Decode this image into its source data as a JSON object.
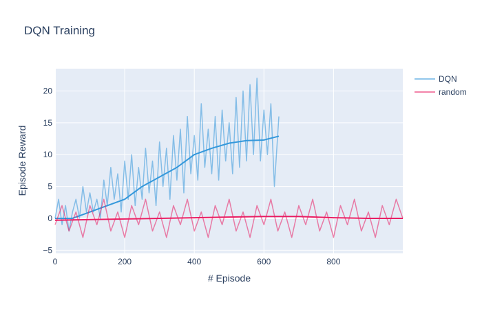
{
  "chart_data": {
    "type": "line",
    "title": "DQN Training",
    "xlabel": "# Episode",
    "ylabel": "Episode Reward",
    "xlim": [
      0,
      999
    ],
    "ylim": [
      -5.5,
      23.5
    ],
    "x_ticks": [
      0,
      200,
      400,
      600,
      800
    ],
    "y_ticks": [
      -5,
      0,
      5,
      10,
      15,
      20
    ],
    "grid": true,
    "legend_position": "top-right",
    "plot_bgcolor": "#e5ecf6",
    "series": [
      {
        "name": "DQN",
        "color": "#3498db",
        "episodes": [
          0,
          643
        ],
        "raw_points": [
          [
            0,
            0
          ],
          [
            10,
            3
          ],
          [
            20,
            -1
          ],
          [
            30,
            2
          ],
          [
            40,
            -2
          ],
          [
            50,
            1
          ],
          [
            60,
            3
          ],
          [
            70,
            0
          ],
          [
            80,
            5
          ],
          [
            90,
            1
          ],
          [
            100,
            4
          ],
          [
            110,
            1
          ],
          [
            120,
            3
          ],
          [
            130,
            0
          ],
          [
            140,
            6
          ],
          [
            150,
            2
          ],
          [
            160,
            8
          ],
          [
            170,
            3
          ],
          [
            180,
            7
          ],
          [
            190,
            1
          ],
          [
            200,
            9
          ],
          [
            210,
            3
          ],
          [
            220,
            10
          ],
          [
            230,
            2
          ],
          [
            240,
            8
          ],
          [
            250,
            3
          ],
          [
            260,
            11
          ],
          [
            270,
            4
          ],
          [
            280,
            9
          ],
          [
            290,
            2
          ],
          [
            300,
            12
          ],
          [
            310,
            5
          ],
          [
            320,
            11
          ],
          [
            330,
            3
          ],
          [
            340,
            13
          ],
          [
            350,
            6
          ],
          [
            360,
            14
          ],
          [
            370,
            4
          ],
          [
            380,
            16
          ],
          [
            390,
            7
          ],
          [
            400,
            13
          ],
          [
            410,
            6
          ],
          [
            420,
            18
          ],
          [
            430,
            8
          ],
          [
            440,
            14
          ],
          [
            450,
            7
          ],
          [
            460,
            16
          ],
          [
            470,
            6
          ],
          [
            480,
            17
          ],
          [
            490,
            9
          ],
          [
            500,
            15
          ],
          [
            510,
            7
          ],
          [
            520,
            19
          ],
          [
            530,
            8
          ],
          [
            540,
            20
          ],
          [
            550,
            9
          ],
          [
            560,
            21
          ],
          [
            570,
            10
          ],
          [
            580,
            22
          ],
          [
            590,
            9
          ],
          [
            600,
            17
          ],
          [
            610,
            10
          ],
          [
            620,
            18
          ],
          [
            630,
            5
          ],
          [
            643,
            16
          ]
        ],
        "moving_avg_points": [
          [
            0,
            0
          ],
          [
            50,
            0
          ],
          [
            100,
            1
          ],
          [
            150,
            2
          ],
          [
            200,
            3
          ],
          [
            250,
            5
          ],
          [
            300,
            6.5
          ],
          [
            350,
            8
          ],
          [
            400,
            10
          ],
          [
            450,
            11
          ],
          [
            500,
            11.8
          ],
          [
            550,
            12.2
          ],
          [
            600,
            12.3
          ],
          [
            643,
            12.9
          ]
        ]
      },
      {
        "name": "random",
        "color": "#e91e63",
        "episodes": [
          0,
          999
        ],
        "raw_points": [
          [
            0,
            -1
          ],
          [
            20,
            2
          ],
          [
            40,
            -2
          ],
          [
            60,
            1
          ],
          [
            80,
            -3
          ],
          [
            100,
            2
          ],
          [
            120,
            -1
          ],
          [
            140,
            3
          ],
          [
            160,
            -2
          ],
          [
            180,
            1
          ],
          [
            200,
            -3
          ],
          [
            220,
            2
          ],
          [
            240,
            -1
          ],
          [
            260,
            3
          ],
          [
            280,
            -2
          ],
          [
            300,
            1
          ],
          [
            320,
            -3
          ],
          [
            340,
            2
          ],
          [
            360,
            -1
          ],
          [
            380,
            3
          ],
          [
            400,
            -2
          ],
          [
            420,
            1
          ],
          [
            440,
            -3
          ],
          [
            460,
            2
          ],
          [
            480,
            -1
          ],
          [
            500,
            3
          ],
          [
            520,
            -2
          ],
          [
            540,
            1
          ],
          [
            560,
            -3
          ],
          [
            580,
            2
          ],
          [
            600,
            -1
          ],
          [
            620,
            3
          ],
          [
            640,
            -2
          ],
          [
            660,
            1
          ],
          [
            680,
            -3
          ],
          [
            700,
            2
          ],
          [
            720,
            -1
          ],
          [
            740,
            3
          ],
          [
            760,
            -2
          ],
          [
            780,
            1
          ],
          [
            800,
            -3
          ],
          [
            820,
            2
          ],
          [
            840,
            -1
          ],
          [
            860,
            3
          ],
          [
            880,
            -2
          ],
          [
            900,
            1
          ],
          [
            920,
            -3
          ],
          [
            940,
            2
          ],
          [
            960,
            -1
          ],
          [
            980,
            3
          ],
          [
            999,
            0
          ]
        ],
        "moving_avg_points": [
          [
            0,
            -0.3
          ],
          [
            100,
            -0.2
          ],
          [
            200,
            -0.1
          ],
          [
            300,
            0
          ],
          [
            400,
            0.1
          ],
          [
            500,
            0.2
          ],
          [
            600,
            0.3
          ],
          [
            700,
            0.3
          ],
          [
            800,
            0.1
          ],
          [
            900,
            0
          ],
          [
            999,
            0
          ]
        ]
      }
    ]
  }
}
